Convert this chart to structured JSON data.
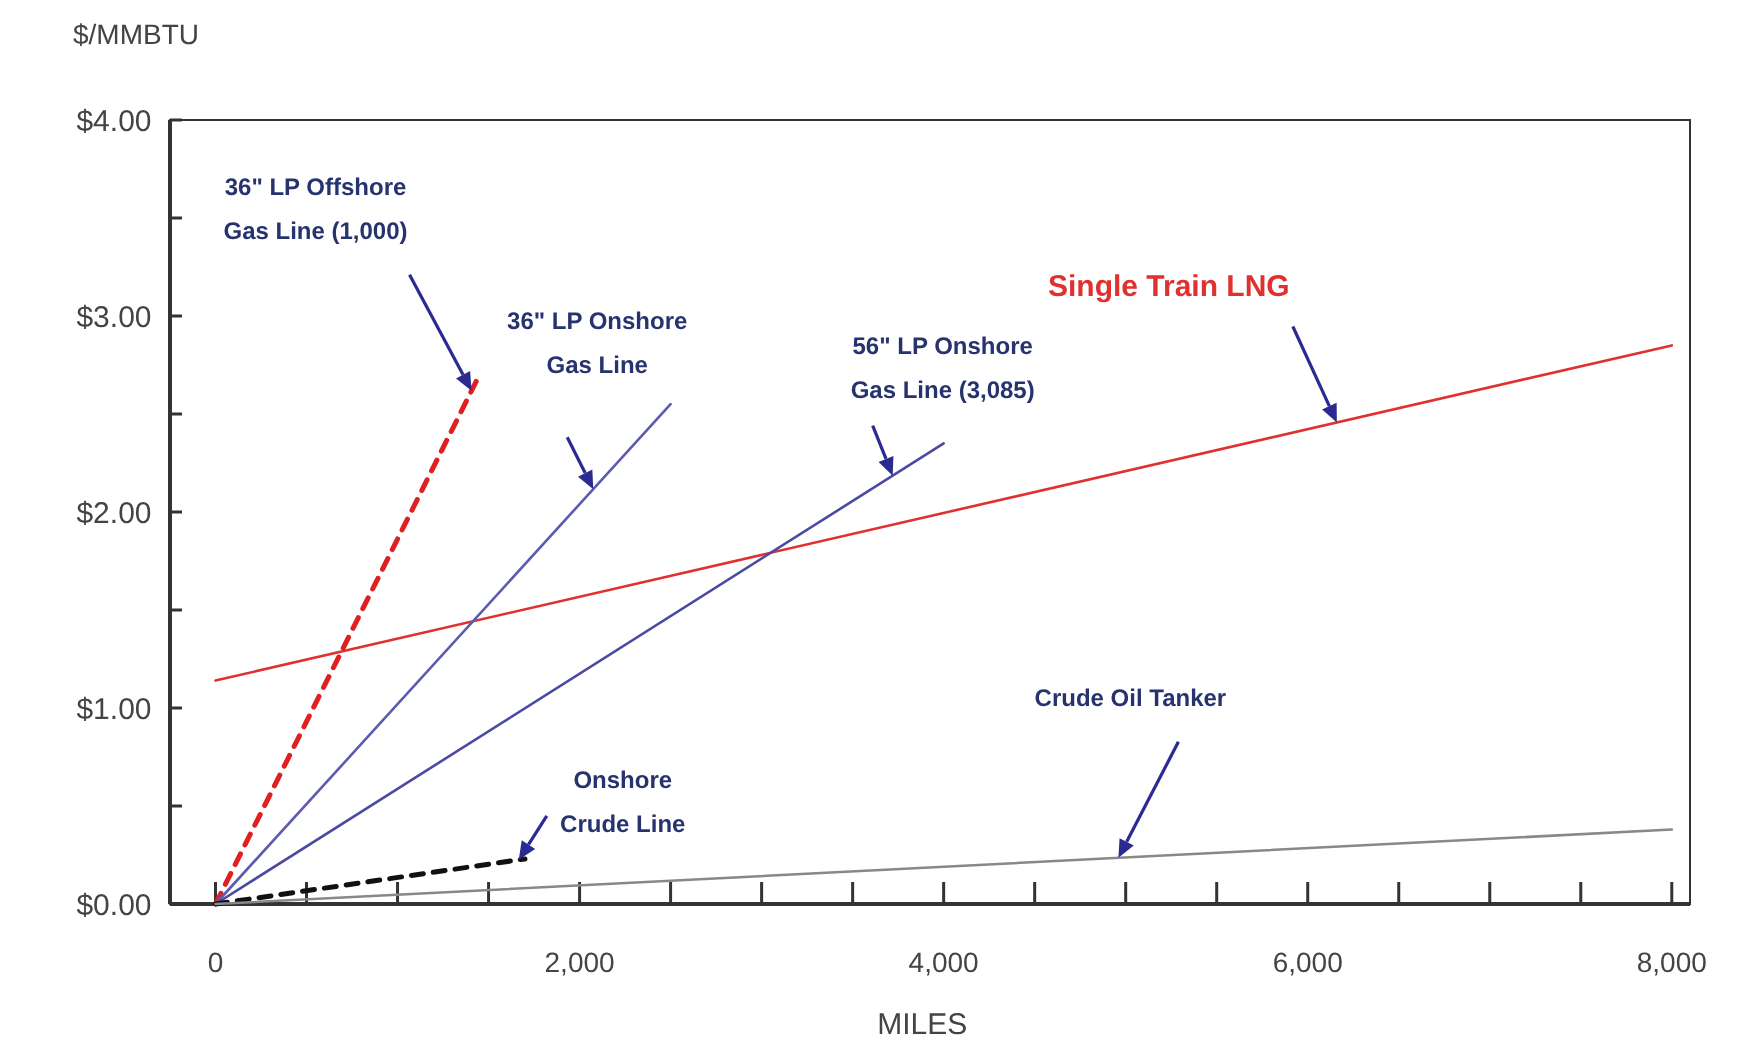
{
  "chart_data": {
    "type": "line",
    "ylabel": "$/MMBTU",
    "xlabel": "MILES",
    "xlim": [
      -250,
      8100
    ],
    "ylim": [
      0,
      4
    ],
    "xticks": [
      {
        "value": 0,
        "label": "0"
      },
      {
        "value": 500,
        "label": null
      },
      {
        "value": 1000,
        "label": null
      },
      {
        "value": 1500,
        "label": null
      },
      {
        "value": 2000,
        "label": "2,000"
      },
      {
        "value": 2500,
        "label": null
      },
      {
        "value": 3000,
        "label": null
      },
      {
        "value": 3500,
        "label": null
      },
      {
        "value": 4000,
        "label": "4,000"
      },
      {
        "value": 4500,
        "label": null
      },
      {
        "value": 5000,
        "label": null
      },
      {
        "value": 5500,
        "label": null
      },
      {
        "value": 6000,
        "label": "6,000"
      },
      {
        "value": 6500,
        "label": null
      },
      {
        "value": 7000,
        "label": null
      },
      {
        "value": 7500,
        "label": null
      },
      {
        "value": 8000,
        "label": "8,000"
      }
    ],
    "yticks": [
      {
        "value": 0,
        "label": "$0.00"
      },
      {
        "value": 0.5,
        "label": null
      },
      {
        "value": 1,
        "label": "$1.00"
      },
      {
        "value": 1.5,
        "label": null
      },
      {
        "value": 2,
        "label": "$2.00"
      },
      {
        "value": 2.5,
        "label": null
      },
      {
        "value": 3,
        "label": "$3.00"
      },
      {
        "value": 3.5,
        "label": null
      },
      {
        "value": 4,
        "label": "$4.00"
      }
    ],
    "grid": false,
    "marker": "none",
    "series": [
      {
        "name": "Single Train LNG",
        "color": "#e03030",
        "x": [
          0,
          8000
        ],
        "values": [
          1.14,
          2.85
        ],
        "line_style": "solid"
      },
      {
        "name": "36\" LP Offshore\nGas Line (1,000)",
        "color": "#e02020",
        "x": [
          0,
          1450
        ],
        "values": [
          0,
          2.7
        ],
        "line_style": "dashed"
      },
      {
        "name": "36\" LP Onshore\nGas Line",
        "color": "#5b5bb0",
        "x": [
          0,
          2500
        ],
        "values": [
          0,
          2.55
        ],
        "line_style": "solid"
      },
      {
        "name": "56\" LP Onshore\nGas Line (3,085)",
        "color": "#4a4aa0",
        "x": [
          0,
          4000
        ],
        "values": [
          0,
          2.35
        ],
        "line_style": "solid"
      },
      {
        "name": "Onshore\nCrude Line",
        "color": "#111111",
        "x": [
          0,
          1700
        ],
        "values": [
          0,
          0.23
        ],
        "line_style": "dashed"
      },
      {
        "name": "Crude Oil Tanker",
        "color": "#888888",
        "x": [
          0,
          8000
        ],
        "values": [
          0,
          0.38
        ],
        "line_style": "solid"
      }
    ]
  }
}
